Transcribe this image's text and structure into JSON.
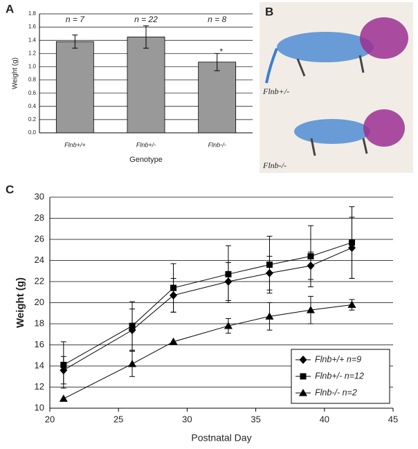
{
  "chart_data": [
    {
      "type": "bar",
      "label": "A",
      "ylabel": "Weight (g)",
      "xlabel": "Genotype",
      "categories": [
        "Flnb+/+",
        "Flnb+/-",
        "Flnb-/-"
      ],
      "values": [
        1.38,
        1.45,
        1.07
      ],
      "errors": [
        0.1,
        0.17,
        0.13
      ],
      "color": "#999999",
      "n_labels": [
        "n = 7",
        "n = 22",
        "n = 8"
      ],
      "significance_label": "*",
      "significance_category": "Flnb-/-",
      "ylim": [
        0,
        1.8
      ],
      "yticks": [
        {
          "value": 0,
          "label": "0.0"
        },
        0.2,
        0.4,
        0.6,
        0.8,
        {
          "value": 1,
          "label": "1.0"
        },
        1.2,
        1.4,
        1.6,
        1.8
      ],
      "grid": true
    },
    {
      "type": "image",
      "label": "B",
      "captions": [
        "Flnb+/-",
        "Flnb-/-"
      ]
    },
    {
      "type": "line",
      "label": "C",
      "ylabel": "Weight (g)",
      "xlabel": "Postnatal Day",
      "x": [
        21,
        26,
        29,
        33,
        36,
        39,
        42
      ],
      "series": [
        {
          "name": "Flnb+/+ n=9",
          "marker": "diamond",
          "color": "#000000",
          "values": [
            13.6,
            17.4,
            20.7,
            22.0,
            22.8,
            23.5,
            25.2
          ],
          "errors": [
            1.3,
            2.0,
            1.6,
            1.8,
            1.6,
            1.3,
            2.9
          ]
        },
        {
          "name": "Flnb+/- n=12",
          "marker": "square",
          "color": "#000000",
          "values": [
            14.1,
            17.8,
            21.4,
            22.7,
            23.6,
            24.4,
            25.7
          ],
          "errors": [
            2.2,
            2.3,
            2.3,
            2.7,
            2.7,
            2.9,
            3.4
          ]
        },
        {
          "name": "Flnb-/- n=2",
          "marker": "triangle",
          "color": "#000000",
          "values": [
            10.9,
            14.2,
            16.3,
            17.8,
            18.7,
            19.3,
            19.8
          ],
          "errors": [
            null,
            1.2,
            null,
            0.7,
            1.3,
            1.3,
            0.5
          ]
        }
      ],
      "xlim": [
        20,
        45
      ],
      "xticks": [
        20,
        25,
        30,
        35,
        40,
        45
      ],
      "ylim": [
        10,
        30
      ],
      "yticks": [
        10,
        12,
        14,
        16,
        18,
        20,
        22,
        24,
        26,
        28,
        30
      ],
      "grid": true,
      "legend": "lower right"
    }
  ]
}
